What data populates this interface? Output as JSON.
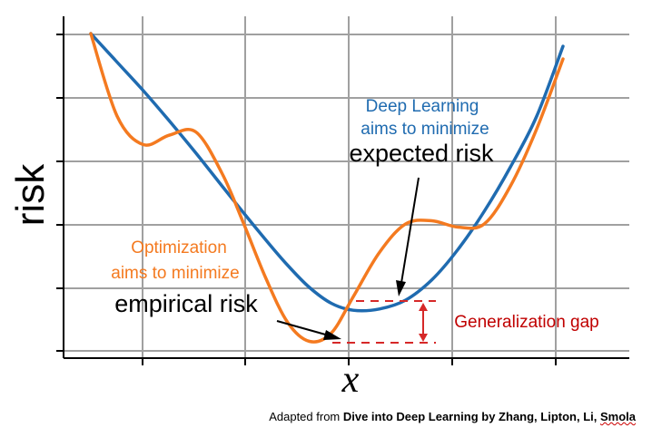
{
  "chart_data": {
    "type": "line",
    "xlabel": "x",
    "ylabel": "risk",
    "grid": true,
    "series": [
      {
        "name": "expected risk",
        "color": "#1f6bb0",
        "x": [
          0.0,
          0.6,
          1.2,
          1.8,
          2.4,
          3.0,
          3.5,
          4.0,
          4.5,
          5.0,
          5.5,
          6.0,
          6.6,
          7.2,
          7.8,
          8.4,
          9.0,
          9.6,
          10.2,
          10.8
        ],
        "y": [
          5.0,
          4.55,
          4.1,
          3.62,
          3.12,
          2.6,
          2.17,
          1.75,
          1.35,
          1.0,
          0.75,
          0.64,
          0.66,
          0.8,
          1.12,
          1.6,
          2.2,
          2.9,
          3.7,
          4.8
        ]
      },
      {
        "name": "empirical risk",
        "color": "#f47a20",
        "x": [
          0.0,
          0.6,
          1.2,
          1.8,
          2.4,
          3.0,
          3.5,
          4.0,
          4.5,
          5.0,
          5.5,
          6.0,
          6.6,
          7.2,
          7.8,
          8.4,
          9.0,
          9.6,
          10.2,
          10.8
        ],
        "y": [
          5.0,
          3.7,
          3.25,
          3.4,
          3.45,
          2.8,
          2.0,
          1.15,
          0.45,
          0.15,
          0.28,
          0.85,
          1.55,
          2.0,
          2.05,
          1.95,
          2.0,
          2.6,
          3.5,
          4.6
        ]
      }
    ],
    "annotations": {
      "deep_learning_line1": "Deep Learning",
      "deep_learning_line2": "aims to minimize",
      "expected_risk": "expected risk",
      "optimization_line1": "Optimization",
      "optimization_line2": "aims to minimize",
      "empirical_risk": "empirical risk",
      "generalization_gap": "Generalization gap"
    },
    "annotation_colors": {
      "deep_learning": "#1f6bb0",
      "optimization": "#f47a20",
      "gap": "#d62828",
      "gap_text": "#c00000"
    }
  },
  "caption": {
    "prefix": "Adapted from ",
    "bold_main": "Dive into Deep Learning by Zhang, Lipton, Li, ",
    "bold_underlined": "Smola"
  }
}
